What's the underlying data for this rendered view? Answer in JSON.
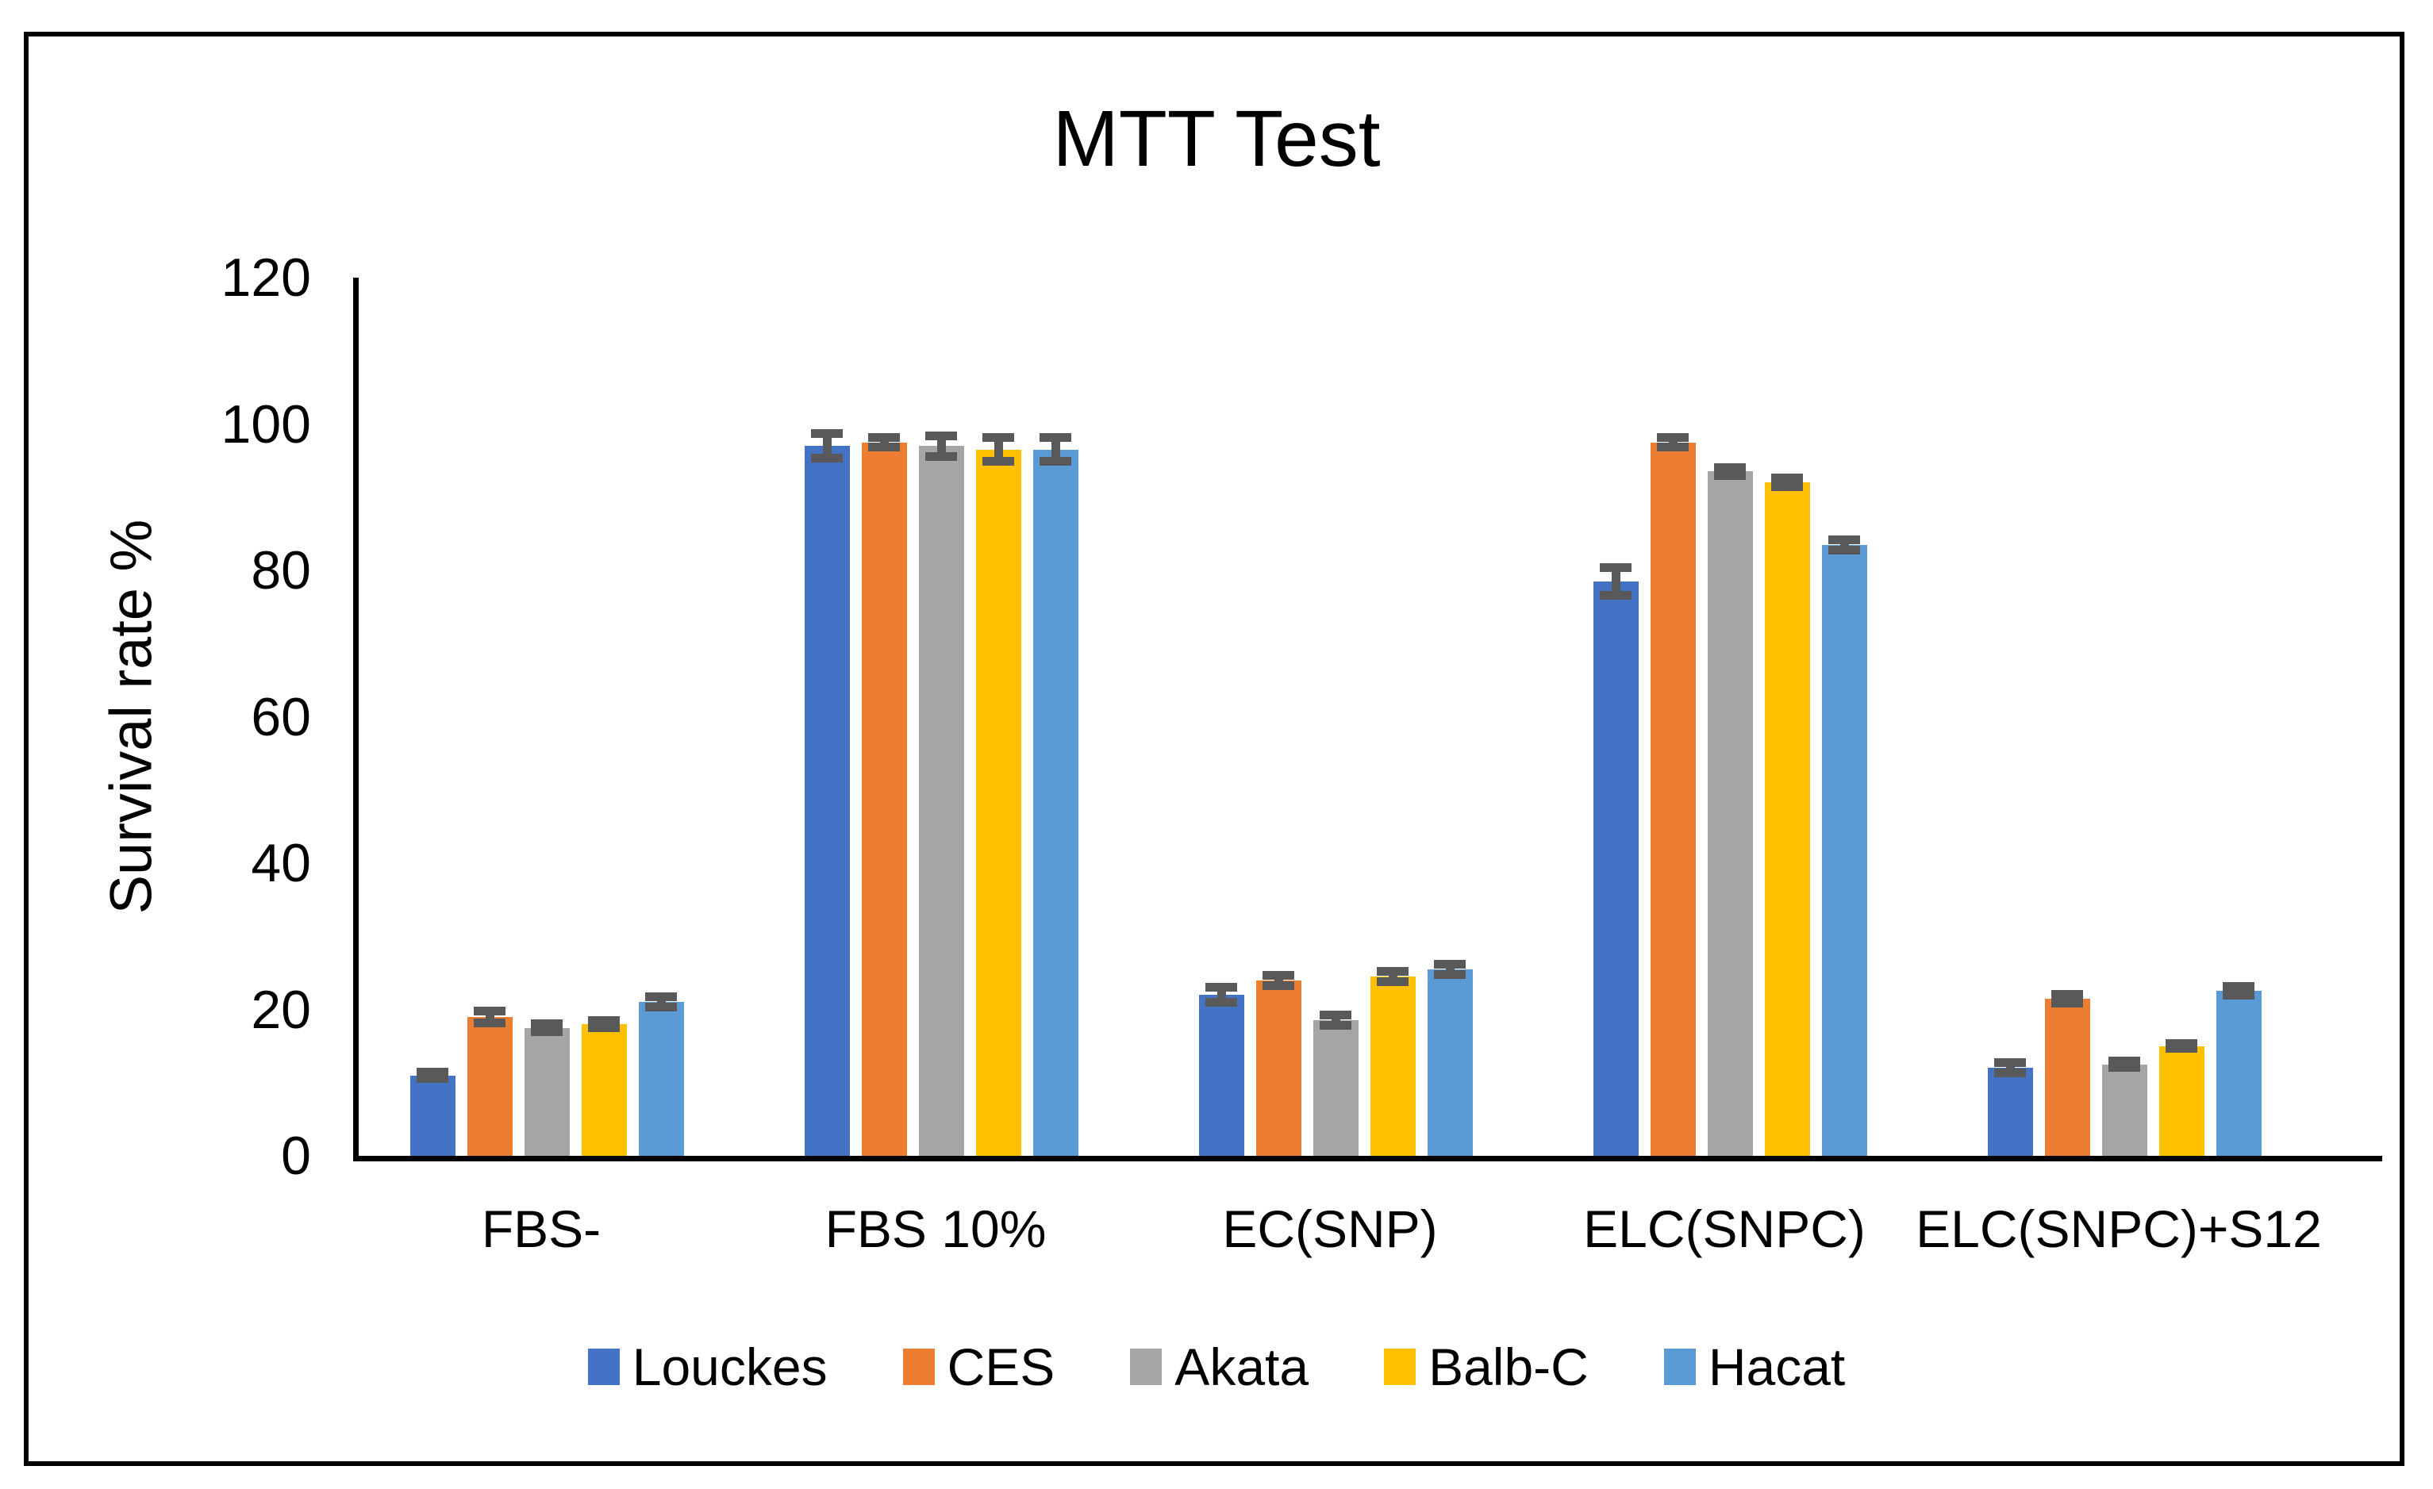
{
  "chart_data": {
    "type": "bar",
    "title": "MTT Test",
    "xlabel": "",
    "ylabel": "Survival rate %",
    "ylim": [
      0,
      120
    ],
    "y_ticks": [
      0,
      20,
      40,
      60,
      80,
      100,
      120
    ],
    "grid": false,
    "legend_position": "bottom",
    "error_bars": true,
    "categories": [
      "FBS-",
      "FBS 10%",
      "EC(SNP)",
      "ELC(SNPC)",
      "ELC(SNPC)+S12"
    ],
    "series": [
      {
        "name": "Louckes",
        "color": "#4472C4",
        "values": [
          11,
          97,
          22,
          78.5,
          12
        ],
        "errors": [
          1.0,
          2.3,
          1.6,
          2.5,
          1.3
        ]
      },
      {
        "name": "CES",
        "color": "#ED7D31",
        "values": [
          19,
          97.5,
          24,
          97.5,
          21.5
        ],
        "errors": [
          1.4,
          1.2,
          1.3,
          1.2,
          1.2
        ]
      },
      {
        "name": "Akata",
        "color": "#A5A5A5",
        "values": [
          17.5,
          97,
          18.5,
          93.5,
          12.5
        ],
        "errors": [
          1.1,
          2.0,
          1.3,
          1.1,
          1.0
        ]
      },
      {
        "name": "Balb-C",
        "color": "#FFC000",
        "values": [
          18,
          96.5,
          24.5,
          92,
          15
        ],
        "errors": [
          1.1,
          2.2,
          1.3,
          1.2,
          0.9
        ]
      },
      {
        "name": "Hacat",
        "color": "#5B9BD5",
        "values": [
          21,
          96.5,
          25.5,
          83.5,
          22.5
        ],
        "errors": [
          1.3,
          2.2,
          1.3,
          1.3,
          1.2
        ]
      }
    ]
  },
  "colors": {
    "axis": "#000000",
    "frame": "#000000",
    "error_bar": "#595959",
    "background": "#ffffff",
    "text": "#000000"
  }
}
